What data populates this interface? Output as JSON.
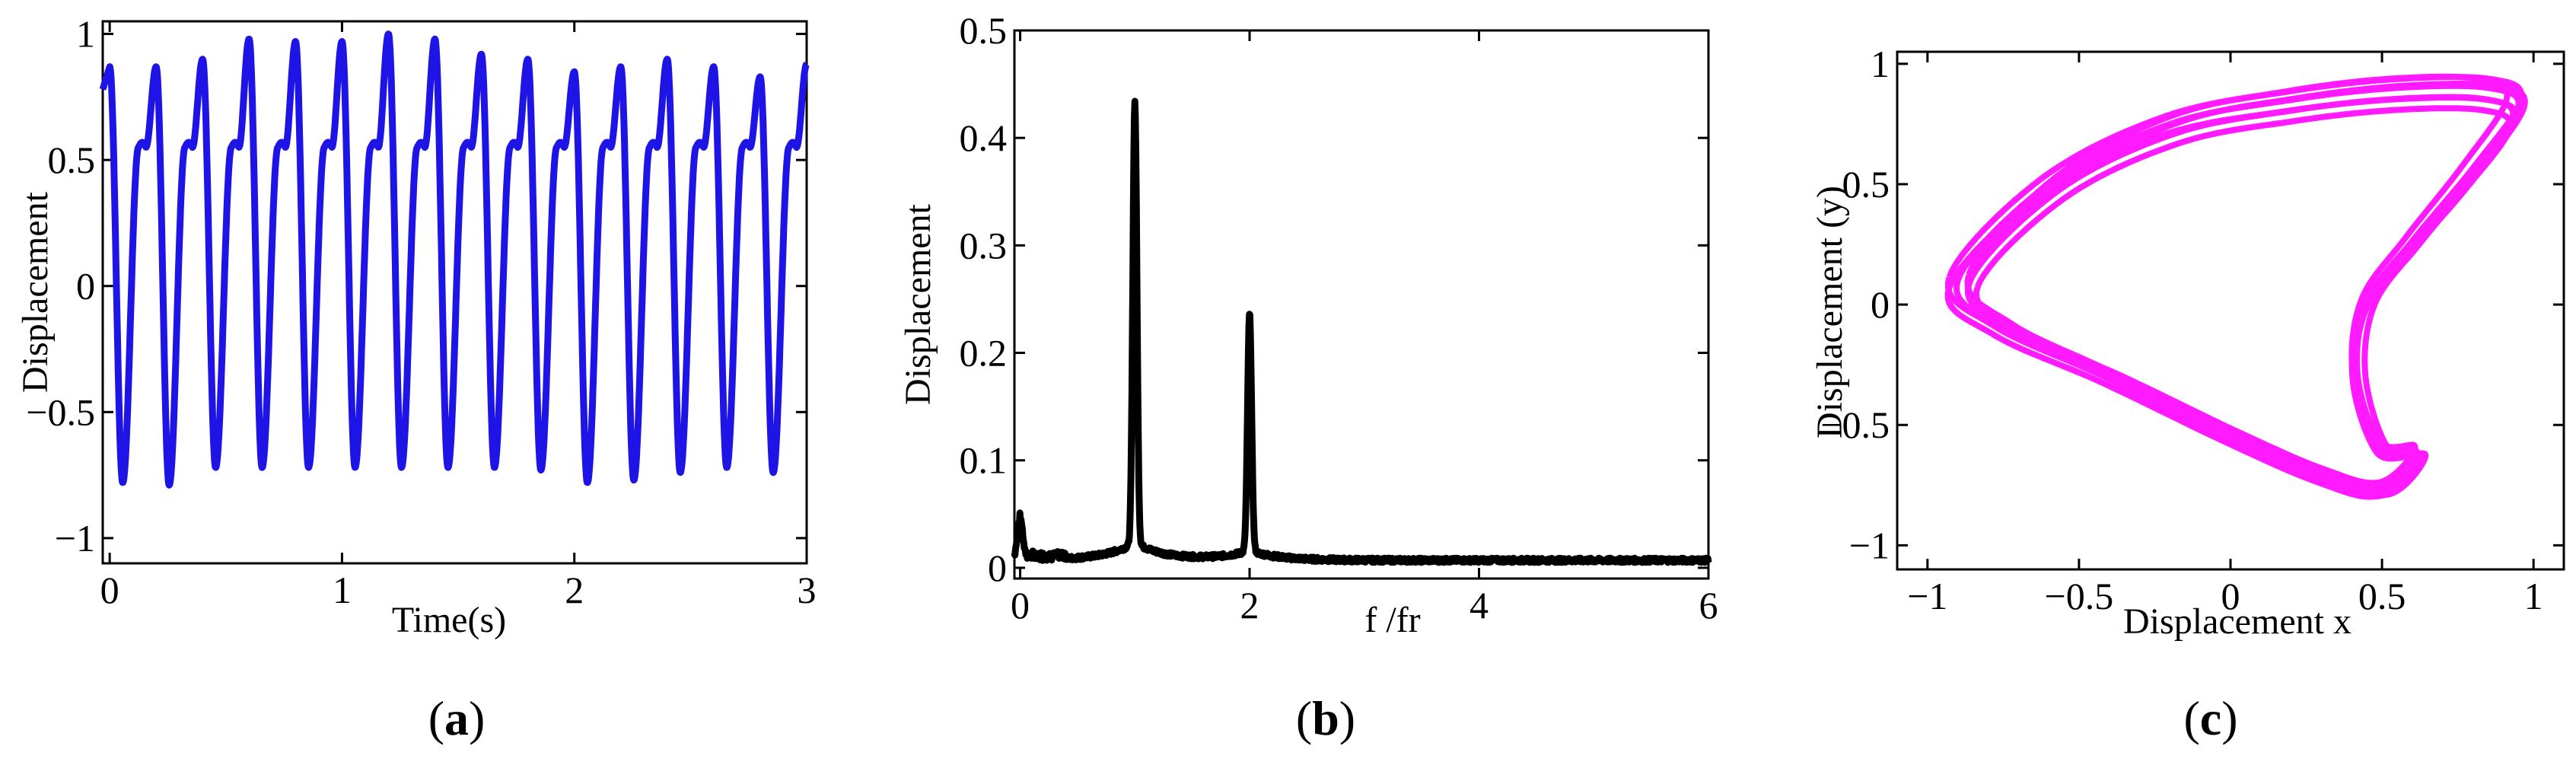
{
  "figure": {
    "panel_labels": [
      {
        "open": "(",
        "letter": "a",
        "close": ")"
      },
      {
        "open": "(",
        "letter": "b",
        "close": ")"
      },
      {
        "open": "(",
        "letter": "c",
        "close": ")"
      }
    ]
  },
  "chart_data": [
    {
      "type": "line",
      "title": "",
      "xlabel": "Time(s)",
      "ylabel": "Displacement",
      "xlim": [
        -0.03,
        3.0
      ],
      "ylim": [
        -1.1,
        1.05
      ],
      "xticks": [
        0,
        1,
        2,
        3
      ],
      "xtick_labels": [
        "0",
        "1",
        "2",
        "3"
      ],
      "yticks": [
        -1,
        -0.5,
        0,
        0.5,
        1
      ],
      "ytick_labels": [
        "−1",
        "−0.5",
        "0",
        "0.5",
        "1"
      ],
      "grid": false,
      "series": [
        {
          "color": "#1f14e6",
          "period_s": 0.2,
          "peak_times": [
            0.0,
            0.18,
            0.39,
            0.59,
            0.79,
            0.99,
            1.19,
            1.39,
            1.59,
            1.79,
            1.99,
            2.19,
            2.39,
            2.59,
            2.79,
            2.98
          ],
          "peak_values": [
            0.87,
            0.87,
            0.9,
            0.98,
            0.97,
            0.97,
            1.0,
            0.98,
            0.92,
            0.9,
            0.85,
            0.87,
            0.9,
            0.87,
            0.83,
            0.88
          ],
          "trough_values": [
            -0.78,
            -0.79,
            -0.72,
            -0.72,
            -0.72,
            -0.72,
            -0.72,
            -0.72,
            -0.72,
            -0.73,
            -0.78,
            -0.77,
            -0.74,
            -0.72,
            -0.74,
            -0.78
          ],
          "shoulder_value": 0.55
        }
      ]
    },
    {
      "type": "line",
      "title": "",
      "xlabel": "f /fr",
      "ylabel": "Displacement",
      "xlim": [
        -0.05,
        6.0
      ],
      "ylim": [
        -0.01,
        0.5
      ],
      "xticks": [
        0,
        2,
        4,
        6
      ],
      "xtick_labels": [
        "0",
        "2",
        "4",
        "6"
      ],
      "yticks": [
        0,
        0.1,
        0.2,
        0.3,
        0.4,
        0.5
      ],
      "ytick_labels": [
        "0",
        "0.1",
        "0.2",
        "0.3",
        "0.4",
        "0.5"
      ],
      "grid": false,
      "series": [
        {
          "color": "#000000",
          "peaks": [
            {
              "x": 0.0,
              "y": 0.035
            },
            {
              "x": 1.0,
              "y": 0.41
            },
            {
              "x": 2.0,
              "y": 0.22
            }
          ],
          "baseline": 0.005
        }
      ]
    },
    {
      "type": "line",
      "title": "",
      "xlabel": "Displacement x",
      "ylabel": "Displacement (y)",
      "xlim": [
        -1.1,
        1.1
      ],
      "ylim": [
        -1.1,
        1.05
      ],
      "xticks": [
        -1,
        -0.5,
        0,
        0.5,
        1
      ],
      "xtick_labels": [
        "−1",
        "−0.5",
        "0",
        "0.5",
        "1"
      ],
      "yticks": [
        -1,
        -0.5,
        0,
        0.5,
        1
      ],
      "ytick_labels": [
        "−1",
        "−0.5",
        "0",
        "0.5",
        "1"
      ],
      "grid": false,
      "series": [
        {
          "color": "#ff1aff",
          "orbit_points": [
            [
              -0.9,
              0.1
            ],
            [
              -0.6,
              0.5
            ],
            [
              -0.2,
              0.75
            ],
            [
              0.2,
              0.85
            ],
            [
              0.55,
              0.9
            ],
            [
              0.85,
              0.9
            ],
            [
              0.95,
              0.82
            ],
            [
              0.8,
              0.55
            ],
            [
              0.6,
              0.25
            ],
            [
              0.45,
              0.0
            ],
            [
              0.42,
              -0.3
            ],
            [
              0.5,
              -0.6
            ],
            [
              0.62,
              -0.62
            ],
            [
              0.5,
              -0.78
            ],
            [
              0.3,
              -0.72
            ],
            [
              0.0,
              -0.55
            ],
            [
              -0.4,
              -0.3
            ],
            [
              -0.75,
              -0.1
            ],
            [
              -0.9,
              0.1
            ]
          ]
        }
      ]
    }
  ]
}
